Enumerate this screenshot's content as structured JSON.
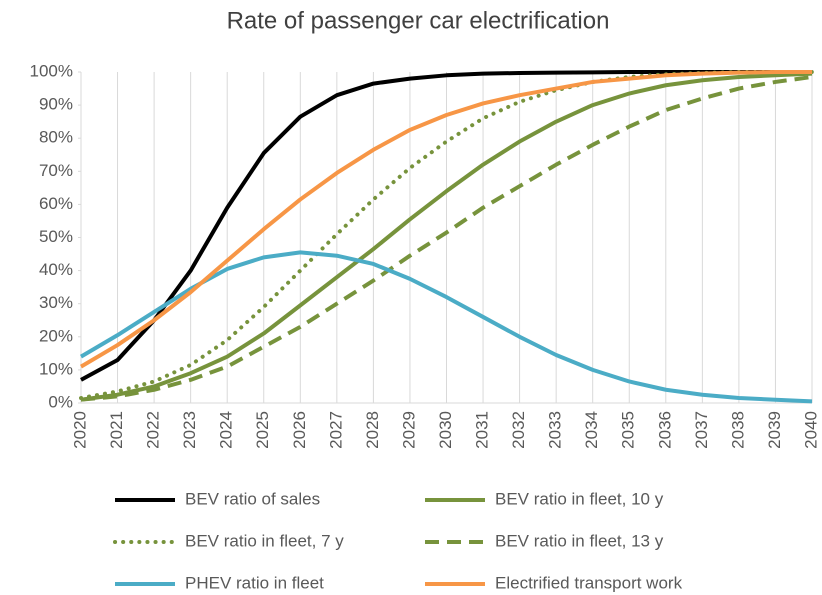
{
  "chart_data": {
    "type": "line",
    "title": "Rate of passenger car electrification",
    "x": [
      2020,
      2021,
      2022,
      2023,
      2024,
      2025,
      2026,
      2027,
      2028,
      2029,
      2030,
      2031,
      2032,
      2033,
      2034,
      2035,
      2036,
      2037,
      2038,
      2039,
      2040
    ],
    "xlim": [
      2020,
      2040
    ],
    "xticks": [
      2020,
      2021,
      2022,
      2023,
      2024,
      2025,
      2026,
      2027,
      2028,
      2029,
      2030,
      2031,
      2032,
      2033,
      2034,
      2035,
      2036,
      2037,
      2038,
      2039,
      2040
    ],
    "ylim": [
      0,
      100
    ],
    "yticks": [
      {
        "value": 0,
        "label": "0%"
      },
      {
        "value": 10,
        "label": "10%"
      },
      {
        "value": 20,
        "label": "20%"
      },
      {
        "value": 30,
        "label": "30%"
      },
      {
        "value": 40,
        "label": "40%"
      },
      {
        "value": 50,
        "label": "50%"
      },
      {
        "value": 60,
        "label": "60%"
      },
      {
        "value": 70,
        "label": "70%"
      },
      {
        "value": 80,
        "label": "80%"
      },
      {
        "value": 90,
        "label": "90%"
      },
      {
        "value": 100,
        "label": "100%"
      }
    ],
    "grid": "x",
    "legend": "bottom",
    "series": [
      {
        "name": "BEV ratio of sales",
        "color": "#000000",
        "dash": "solid",
        "values": [
          7,
          13,
          25,
          40,
          59,
          75.5,
          86.5,
          93,
          96.5,
          98,
          99,
          99.5,
          99.7,
          99.8,
          99.9,
          100,
          100,
          100,
          100,
          100,
          100
        ]
      },
      {
        "name": "BEV ratio in fleet, 10 y",
        "color": "#77933c",
        "dash": "solid",
        "values": [
          1,
          2.5,
          5,
          9,
          14,
          21,
          29.5,
          38,
          46.5,
          55.5,
          64,
          72,
          79,
          85,
          90,
          93.5,
          96,
          97.5,
          98.5,
          99,
          99.5
        ]
      },
      {
        "name": "BEV ratio in fleet, 7 y",
        "color": "#77933c",
        "dash": "dotted",
        "values": [
          1.5,
          3.5,
          6.5,
          11.5,
          19,
          29,
          40,
          51,
          61.5,
          71,
          79,
          86,
          91,
          94.5,
          97,
          98.5,
          99.3,
          99.7,
          100,
          100,
          100
        ]
      },
      {
        "name": "BEV ratio in fleet, 13 y",
        "color": "#77933c",
        "dash": "dashed",
        "values": [
          1,
          2,
          4,
          7,
          11,
          17,
          23,
          30,
          37,
          44.5,
          51.5,
          59,
          65.5,
          72,
          78,
          83.5,
          88.5,
          92,
          95,
          97,
          98.5
        ]
      },
      {
        "name": "PHEV ratio in fleet",
        "color": "#4bacc6",
        "dash": "solid",
        "values": [
          14,
          20.5,
          27.5,
          34.5,
          40.5,
          44,
          45.5,
          44.5,
          42,
          37.5,
          32,
          26,
          20,
          14.5,
          10,
          6.5,
          4,
          2.5,
          1.5,
          1,
          0.5
        ]
      },
      {
        "name": "Electrified transport work",
        "color": "#f79646",
        "dash": "solid",
        "values": [
          11,
          17.5,
          25,
          33.5,
          43,
          52.5,
          61.5,
          69.5,
          76.5,
          82.5,
          87,
          90.5,
          93,
          95,
          97,
          98,
          99,
          99.5,
          99.8,
          100,
          100
        ]
      }
    ]
  }
}
